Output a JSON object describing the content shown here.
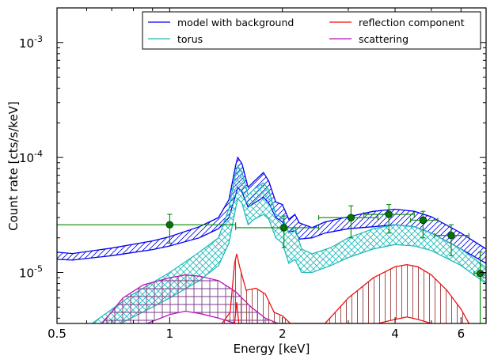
{
  "chart_data": {
    "type": "line",
    "title": "",
    "xlabel": "Energy [keV]",
    "ylabel": "Count rate [cts/s/keV]",
    "xscale": "log",
    "yscale": "log",
    "xlim": [
      0.5,
      7.0
    ],
    "ylim": [
      3.6e-06,
      0.002
    ],
    "grid": false,
    "legend_position": "top-right",
    "x_ticks": [
      {
        "value": 0.5,
        "label": "0.5"
      },
      {
        "value": 1,
        "label": "1"
      },
      {
        "value": 2,
        "label": "2"
      },
      {
        "value": 4,
        "label": "4"
      },
      {
        "value": 6,
        "label": "6"
      }
    ],
    "y_ticks": [
      {
        "value": 1e-05,
        "base": "10",
        "exp": "-5"
      },
      {
        "value": 0.0001,
        "base": "10",
        "exp": "-4"
      },
      {
        "value": 0.001,
        "base": "10",
        "exp": "-3"
      }
    ],
    "colors": {
      "model": "#0000ee",
      "torus": "#22bbbb",
      "reflection": "#ee1111",
      "scattering": "#bb11bb",
      "reflection_hatch": "#a05050",
      "scattering_hatch": "#7a3a8a",
      "data": "#007700",
      "data_errorbar": "#008800"
    },
    "series": [
      {
        "name": "model with background",
        "color": "#0000ee",
        "upper": [
          [
            0.5,
            1.5e-05
          ],
          [
            0.55,
            1.46e-05
          ],
          [
            0.7,
            1.63e-05
          ],
          [
            0.9,
            1.88e-05
          ],
          [
            1.0,
            2.05e-05
          ],
          [
            1.2,
            2.5e-05
          ],
          [
            1.35,
            3e-05
          ],
          [
            1.44,
            4.3e-05
          ],
          [
            1.5,
            8.5e-05
          ],
          [
            1.52,
            0.0001
          ],
          [
            1.56,
            8.8e-05
          ],
          [
            1.62,
            5.5e-05
          ],
          [
            1.68,
            6.2e-05
          ],
          [
            1.78,
            7.4e-05
          ],
          [
            1.84,
            6.2e-05
          ],
          [
            1.92,
            4.1e-05
          ],
          [
            2.0,
            3.9e-05
          ],
          [
            2.08,
            2.9e-05
          ],
          [
            2.16,
            3.2e-05
          ],
          [
            2.22,
            2.7e-05
          ],
          [
            2.4,
            2.45e-05
          ],
          [
            2.6,
            2.75e-05
          ],
          [
            3.0,
            3.05e-05
          ],
          [
            3.5,
            3.4e-05
          ],
          [
            4.0,
            3.55e-05
          ],
          [
            4.5,
            3.4e-05
          ],
          [
            5.0,
            3.05e-05
          ],
          [
            6.0,
            2.2e-05
          ],
          [
            7.0,
            1.6e-05
          ]
        ],
        "lower": [
          [
            0.5,
            1.3e-05
          ],
          [
            0.55,
            1.28e-05
          ],
          [
            0.7,
            1.4e-05
          ],
          [
            0.9,
            1.58e-05
          ],
          [
            1.0,
            1.7e-05
          ],
          [
            1.2,
            2e-05
          ],
          [
            1.35,
            2.4e-05
          ],
          [
            1.44,
            3e-05
          ],
          [
            1.5,
            4.7e-05
          ],
          [
            1.52,
            5.5e-05
          ],
          [
            1.56,
            5e-05
          ],
          [
            1.62,
            3.7e-05
          ],
          [
            1.68,
            4e-05
          ],
          [
            1.78,
            4.5e-05
          ],
          [
            1.84,
            4e-05
          ],
          [
            1.92,
            3e-05
          ],
          [
            2.0,
            2.75e-05
          ],
          [
            2.08,
            2.25e-05
          ],
          [
            2.16,
            2.3e-05
          ],
          [
            2.22,
            1.95e-05
          ],
          [
            2.4,
            2e-05
          ],
          [
            2.6,
            2.2e-05
          ],
          [
            3.0,
            2.4e-05
          ],
          [
            3.5,
            2.5e-05
          ],
          [
            4.0,
            2.6e-05
          ],
          [
            4.5,
            2.5e-05
          ],
          [
            5.0,
            2.2e-05
          ],
          [
            6.0,
            1.6e-05
          ],
          [
            7.0,
            1.2e-05
          ]
        ]
      },
      {
        "name": "torus",
        "color": "#22bbbb",
        "upper": [
          [
            0.62,
            3.6e-06
          ],
          [
            0.8,
            6.5e-06
          ],
          [
            1.0,
            1e-05
          ],
          [
            1.2,
            1.5e-05
          ],
          [
            1.35,
            2e-05
          ],
          [
            1.44,
            3.6e-05
          ],
          [
            1.5,
            7.4e-05
          ],
          [
            1.52,
            8.4e-05
          ],
          [
            1.56,
            7.5e-05
          ],
          [
            1.62,
            4.7e-05
          ],
          [
            1.68,
            5.3e-05
          ],
          [
            1.78,
            6e-05
          ],
          [
            1.84,
            5.2e-05
          ],
          [
            1.92,
            3.2e-05
          ],
          [
            2.0,
            3e-05
          ],
          [
            2.08,
            2.2e-05
          ],
          [
            2.16,
            2.5e-05
          ],
          [
            2.25,
            1.6e-05
          ],
          [
            2.4,
            1.45e-05
          ],
          [
            2.7,
            1.65e-05
          ],
          [
            3.0,
            2e-05
          ],
          [
            3.5,
            2.4e-05
          ],
          [
            4.0,
            2.6e-05
          ],
          [
            4.5,
            2.5e-05
          ],
          [
            5.0,
            2.2e-05
          ],
          [
            6.0,
            1.6e-05
          ],
          [
            7.0,
            1.1e-05
          ]
        ],
        "lower": [
          [
            0.74,
            3.6e-06
          ],
          [
            0.9,
            5e-06
          ],
          [
            1.0,
            6e-06
          ],
          [
            1.2,
            8.5e-06
          ],
          [
            1.35,
            1.15e-05
          ],
          [
            1.44,
            1.8e-05
          ],
          [
            1.5,
            3.6e-05
          ],
          [
            1.52,
            4.4e-05
          ],
          [
            1.56,
            4e-05
          ],
          [
            1.62,
            2.6e-05
          ],
          [
            1.68,
            2.9e-05
          ],
          [
            1.78,
            3.2e-05
          ],
          [
            1.84,
            2.9e-05
          ],
          [
            1.92,
            2e-05
          ],
          [
            2.0,
            1.8e-05
          ],
          [
            2.08,
            1.2e-05
          ],
          [
            2.16,
            1.3e-05
          ],
          [
            2.25,
            1e-05
          ],
          [
            2.4,
            1e-05
          ],
          [
            2.7,
            1.15e-05
          ],
          [
            3.0,
            1.35e-05
          ],
          [
            3.5,
            1.6e-05
          ],
          [
            4.0,
            1.75e-05
          ],
          [
            4.5,
            1.7e-05
          ],
          [
            5.0,
            1.55e-05
          ],
          [
            6.0,
            1.15e-05
          ],
          [
            7.0,
            8e-06
          ]
        ]
      },
      {
        "name": "reflection component",
        "color": "#ee1111",
        "upper": [
          [
            1.38,
            3.6e-06
          ],
          [
            1.45,
            4.5e-06
          ],
          [
            1.49,
            1.2e-05
          ],
          [
            1.51,
            1.45e-05
          ],
          [
            1.54,
            1.1e-05
          ],
          [
            1.6,
            7e-06
          ],
          [
            1.7,
            7.3e-06
          ],
          [
            1.8,
            6.5e-06
          ],
          [
            1.9,
            4.5e-06
          ],
          [
            2.0,
            4.2e-06
          ],
          [
            2.1,
            3.6e-06
          ],
          [
            2.6,
            3.6e-06
          ],
          [
            3.0,
            6e-06
          ],
          [
            3.5,
            9e-06
          ],
          [
            4.0,
            1.12e-05
          ],
          [
            4.3,
            1.17e-05
          ],
          [
            4.6,
            1.12e-05
          ],
          [
            5.0,
            9.5e-06
          ],
          [
            5.5,
            7e-06
          ],
          [
            6.0,
            4.8e-06
          ],
          [
            6.3,
            3.6e-06
          ]
        ],
        "lower": [
          [
            1.49,
            3.6e-06
          ],
          [
            1.51,
            5.5e-06
          ],
          [
            1.53,
            3.6e-06
          ],
          [
            3.6,
            3.6e-06
          ],
          [
            4.0,
            3.9e-06
          ],
          [
            4.3,
            4.1e-06
          ],
          [
            4.6,
            3.9e-06
          ],
          [
            5.0,
            3.6e-06
          ]
        ]
      },
      {
        "name": "scattering",
        "color": "#bb11bb",
        "upper": [
          [
            0.66,
            3.6e-06
          ],
          [
            0.75,
            6e-06
          ],
          [
            0.85,
            7.8e-06
          ],
          [
            1.0,
            9e-06
          ],
          [
            1.1,
            9.5e-06
          ],
          [
            1.2,
            9.3e-06
          ],
          [
            1.35,
            8.5e-06
          ],
          [
            1.5,
            6.8e-06
          ],
          [
            1.65,
            5e-06
          ],
          [
            1.8,
            4e-06
          ],
          [
            1.95,
            3.6e-06
          ]
        ],
        "lower": [
          [
            0.87,
            3.6e-06
          ],
          [
            1.0,
            4.3e-06
          ],
          [
            1.1,
            4.6e-06
          ],
          [
            1.2,
            4.4e-06
          ],
          [
            1.35,
            4e-06
          ],
          [
            1.5,
            3.6e-06
          ]
        ]
      }
    ],
    "data_points": [
      {
        "x": 1.0,
        "xerr": [
          0.5,
          1.5
        ],
        "y": 2.6e-05,
        "yerr": [
          1.8e-05,
          3.2e-05
        ]
      },
      {
        "x": 2.02,
        "xerr": [
          1.5,
          2.5
        ],
        "y": 2.45e-05,
        "yerr": [
          1.65e-05,
          3.1e-05
        ]
      },
      {
        "x": 3.05,
        "xerr": [
          2.5,
          3.6
        ],
        "y": 3e-05,
        "yerr": [
          2e-05,
          3.8e-05
        ]
      },
      {
        "x": 3.85,
        "xerr": [
          3.3,
          4.5
        ],
        "y": 3.2e-05,
        "yerr": [
          2.2e-05,
          3.9e-05
        ]
      },
      {
        "x": 4.75,
        "xerr": [
          4.4,
          5.2
        ],
        "y": 2.85e-05,
        "yerr": [
          2e-05,
          3.4e-05
        ]
      },
      {
        "x": 5.65,
        "xerr": [
          5.1,
          6.3
        ],
        "y": 2.1e-05,
        "yerr": [
          1.4e-05,
          2.6e-05
        ]
      },
      {
        "x": 6.75,
        "xerr": [
          6.5,
          7.0
        ],
        "y": 9.8e-06,
        "yerr": [
          3.6e-06,
          1.5e-05
        ]
      }
    ],
    "legend": [
      {
        "label": "model with background",
        "color": "#0000ee"
      },
      {
        "label": "reflection component",
        "color": "#ee1111"
      },
      {
        "label": "torus",
        "color": "#22bbbb"
      },
      {
        "label": "scattering",
        "color": "#bb11bb"
      }
    ]
  }
}
